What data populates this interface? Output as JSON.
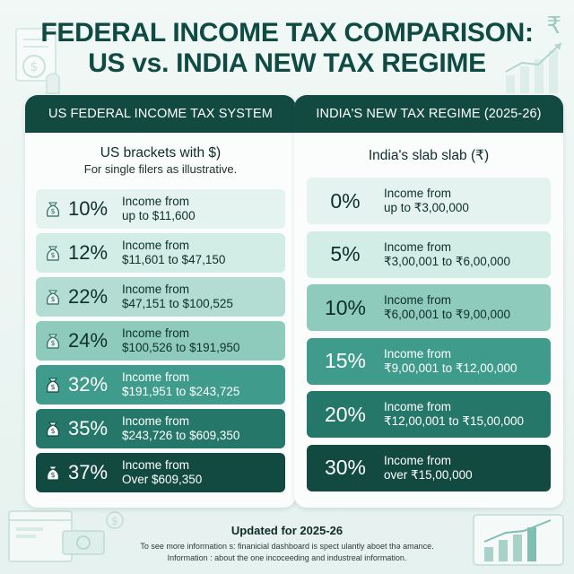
{
  "title": {
    "line1": "FEDERAL INCOME TAX COMPARISON:",
    "line2": "US vs. INDIA NEW TAX REGIME"
  },
  "colors": {
    "dark_teal": "#124a42",
    "mid_teal": "#3f9b8b",
    "light_teal": "#d2ece6"
  },
  "us": {
    "header": "US FEDERAL INCOME TAX SYSTEM",
    "subtitle": "US brackets with $)",
    "note": "For single filers as illustrative.",
    "icon": "money-bag-icon",
    "rows": [
      {
        "rate": "10%",
        "line1": "Income from",
        "line2": "up to $11,600"
      },
      {
        "rate": "12%",
        "line1": "Income from",
        "line2": "$11,601 to $47,150"
      },
      {
        "rate": "22%",
        "line1": "Income from",
        "line2": "$47,151 to $100,525"
      },
      {
        "rate": "24%",
        "line1": "Income from",
        "line2": "$100,526 to $191,950"
      },
      {
        "rate": "32%",
        "line1": "Income from",
        "line2": "$191,951 to $243,725"
      },
      {
        "rate": "35%",
        "line1": "Income from",
        "line2": "$243,726 to $609,350"
      },
      {
        "rate": "37%",
        "line1": "Income from",
        "line2": "Over $609,350"
      }
    ]
  },
  "india": {
    "header": "INDIA'S NEW TAX REGIME (2025-26)",
    "subtitle": "India's slab slab (₹)",
    "rows": [
      {
        "rate": "0%",
        "line1": "Income from",
        "line2": "up to ₹3,00,000"
      },
      {
        "rate": "5%",
        "line1": "Income from",
        "line2": "₹3,00,001 to ₹6,00,000"
      },
      {
        "rate": "10%",
        "line1": "Income from",
        "line2": "₹6,00,001 to ₹9,00,000"
      },
      {
        "rate": "15%",
        "line1": "Income from",
        "line2": "₹9,00,001 to ₹12,00,000"
      },
      {
        "rate": "20%",
        "line1": "Income from",
        "line2": "₹12,00,001 to ₹15,00,000"
      },
      {
        "rate": "30%",
        "line1": "Income from",
        "line2": "over ₹15,00,000"
      }
    ]
  },
  "footer": {
    "title": "Updated for 2025-26",
    "note1": "To see more information s: finanicial dashboard is spect ulantly aboet thə amance.",
    "note2": "Information : about the one incoceeding and industreal information."
  },
  "decor": {
    "rupee_symbol": "₹"
  }
}
